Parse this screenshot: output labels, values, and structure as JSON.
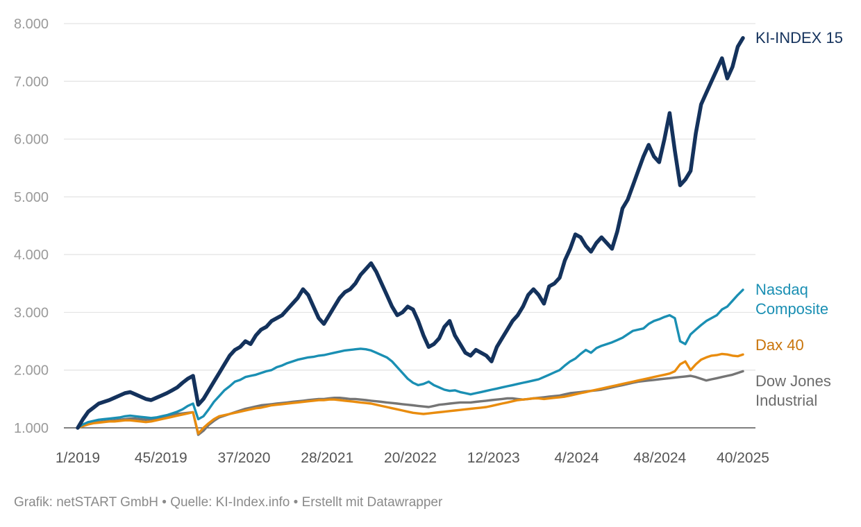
{
  "footer": "Grafik: netSTART GmbH • Quelle: KI-Index.info • Erstellt mit Datawrapper",
  "chart_data": {
    "type": "line",
    "ylim": [
      1000,
      8000
    ],
    "yticks": [
      1000,
      2000,
      3000,
      4000,
      5000,
      6000,
      7000,
      8000
    ],
    "ytick_labels": [
      "1.000",
      "2.000",
      "3.000",
      "4.000",
      "5.000",
      "6.000",
      "7.000",
      "8.000"
    ],
    "x_tick_labels": [
      "1/2019",
      "45/2019",
      "37/2020",
      "28/2021",
      "20/2022",
      "12/2023",
      "4/2024",
      "48/2024",
      "40/2025"
    ],
    "legend_placement": "right, labels at line ends",
    "grid": "horizontal",
    "series": [
      {
        "name": "KI-INDEX 15",
        "label_lines": [
          "KI-INDEX 15"
        ],
        "color": "#14325c",
        "values": [
          1000,
          1150,
          1280,
          1350,
          1420,
          1450,
          1480,
          1520,
          1560,
          1600,
          1620,
          1580,
          1540,
          1500,
          1480,
          1520,
          1560,
          1600,
          1650,
          1700,
          1780,
          1850,
          1900,
          1400,
          1500,
          1650,
          1800,
          1950,
          2100,
          2250,
          2350,
          2400,
          2500,
          2450,
          2600,
          2700,
          2750,
          2850,
          2900,
          2950,
          3050,
          3150,
          3250,
          3400,
          3300,
          3100,
          2900,
          2800,
          2950,
          3100,
          3250,
          3350,
          3400,
          3500,
          3650,
          3750,
          3850,
          3700,
          3500,
          3300,
          3100,
          2950,
          3000,
          3100,
          3050,
          2850,
          2600,
          2400,
          2450,
          2550,
          2750,
          2850,
          2600,
          2450,
          2300,
          2250,
          2350,
          2300,
          2250,
          2150,
          2400,
          2550,
          2700,
          2850,
          2950,
          3100,
          3300,
          3400,
          3300,
          3150,
          3450,
          3500,
          3600,
          3900,
          4100,
          4350,
          4300,
          4150,
          4050,
          4200,
          4300,
          4200,
          4100,
          4400,
          4800,
          4950,
          5200,
          5450,
          5700,
          5900,
          5700,
          5600,
          6000,
          6450,
          5800,
          5200,
          5300,
          5450,
          6100,
          6600,
          6800,
          7000,
          7200,
          7400,
          7050,
          7250,
          7600,
          7750
        ]
      },
      {
        "name": "Nasdaq Composite",
        "label_lines": [
          "Nasdaq",
          "Composite"
        ],
        "color": "#1a8fb3",
        "values": [
          1000,
          1060,
          1100,
          1120,
          1140,
          1150,
          1160,
          1170,
          1180,
          1200,
          1210,
          1200,
          1190,
          1180,
          1170,
          1180,
          1200,
          1220,
          1250,
          1280,
          1320,
          1380,
          1420,
          1150,
          1200,
          1320,
          1450,
          1550,
          1650,
          1720,
          1800,
          1830,
          1880,
          1900,
          1920,
          1950,
          1980,
          2000,
          2050,
          2080,
          2120,
          2150,
          2180,
          2200,
          2220,
          2230,
          2250,
          2260,
          2280,
          2300,
          2320,
          2340,
          2350,
          2360,
          2370,
          2360,
          2340,
          2300,
          2260,
          2220,
          2150,
          2050,
          1950,
          1850,
          1780,
          1740,
          1760,
          1800,
          1740,
          1700,
          1660,
          1640,
          1650,
          1620,
          1600,
          1580,
          1600,
          1620,
          1640,
          1660,
          1680,
          1700,
          1720,
          1740,
          1760,
          1780,
          1800,
          1820,
          1840,
          1880,
          1920,
          1960,
          2000,
          2080,
          2150,
          2200,
          2280,
          2350,
          2300,
          2380,
          2420,
          2450,
          2480,
          2520,
          2560,
          2620,
          2680,
          2700,
          2720,
          2800,
          2850,
          2880,
          2920,
          2950,
          2900,
          2500,
          2450,
          2620,
          2700,
          2780,
          2850,
          2900,
          2950,
          3050,
          3100,
          3200,
          3300,
          3390
        ]
      },
      {
        "name": "Dax 40",
        "label_lines": [
          "Dax 40"
        ],
        "color": "#e98c0e",
        "values": [
          1000,
          1030,
          1060,
          1080,
          1090,
          1100,
          1110,
          1110,
          1120,
          1130,
          1130,
          1120,
          1110,
          1100,
          1110,
          1130,
          1150,
          1170,
          1190,
          1210,
          1230,
          1250,
          1270,
          900,
          1000,
          1080,
          1150,
          1200,
          1220,
          1240,
          1260,
          1280,
          1300,
          1320,
          1340,
          1350,
          1370,
          1390,
          1400,
          1410,
          1420,
          1430,
          1440,
          1450,
          1460,
          1470,
          1480,
          1480,
          1490,
          1490,
          1480,
          1470,
          1460,
          1450,
          1440,
          1430,
          1420,
          1400,
          1380,
          1360,
          1340,
          1320,
          1300,
          1280,
          1260,
          1250,
          1240,
          1250,
          1260,
          1270,
          1280,
          1290,
          1300,
          1310,
          1320,
          1330,
          1340,
          1350,
          1360,
          1380,
          1400,
          1420,
          1440,
          1460,
          1480,
          1490,
          1500,
          1510,
          1510,
          1500,
          1510,
          1520,
          1530,
          1540,
          1560,
          1580,
          1600,
          1620,
          1640,
          1660,
          1680,
          1700,
          1720,
          1740,
          1760,
          1780,
          1800,
          1820,
          1840,
          1860,
          1880,
          1900,
          1920,
          1940,
          1980,
          2100,
          2150,
          2000,
          2100,
          2180,
          2220,
          2250,
          2260,
          2280,
          2270,
          2250,
          2240,
          2270
        ]
      },
      {
        "name": "Dow Jones Industrial",
        "label_lines": [
          "Dow Jones",
          "Industrial"
        ],
        "color": "#757575",
        "values": [
          1000,
          1040,
          1070,
          1090,
          1100,
          1110,
          1120,
          1130,
          1140,
          1150,
          1160,
          1160,
          1150,
          1140,
          1150,
          1160,
          1180,
          1200,
          1220,
          1240,
          1250,
          1260,
          1270,
          880,
          950,
          1050,
          1120,
          1180,
          1210,
          1240,
          1270,
          1300,
          1330,
          1350,
          1370,
          1390,
          1400,
          1410,
          1420,
          1430,
          1440,
          1450,
          1460,
          1470,
          1480,
          1490,
          1500,
          1500,
          1510,
          1520,
          1520,
          1510,
          1500,
          1500,
          1490,
          1480,
          1470,
          1460,
          1450,
          1440,
          1430,
          1420,
          1410,
          1400,
          1390,
          1380,
          1370,
          1360,
          1380,
          1400,
          1410,
          1420,
          1430,
          1440,
          1440,
          1440,
          1450,
          1460,
          1470,
          1480,
          1490,
          1500,
          1510,
          1510,
          1500,
          1490,
          1500,
          1510,
          1520,
          1530,
          1540,
          1550,
          1560,
          1580,
          1600,
          1610,
          1620,
          1630,
          1640,
          1650,
          1660,
          1680,
          1700,
          1720,
          1740,
          1760,
          1780,
          1800,
          1810,
          1820,
          1830,
          1840,
          1850,
          1860,
          1870,
          1880,
          1890,
          1900,
          1880,
          1850,
          1820,
          1840,
          1860,
          1880,
          1900,
          1920,
          1950,
          1980
        ]
      }
    ]
  }
}
